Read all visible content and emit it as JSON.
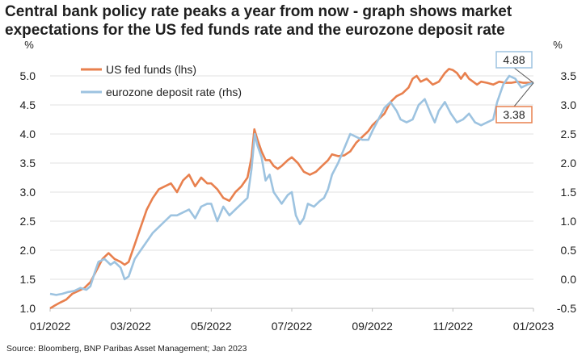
{
  "title_lines": [
    "Central bank policy rate peaks a year from now - graph shows market",
    "expectations for the US fed funds rate and the eurozone deposit rate"
  ],
  "source": "Source: Bloomberg, BNP Paribas Asset Management; Jan 2023",
  "chart_data": {
    "type": "line",
    "x_axis": {
      "min_index": 0,
      "max_index": 12,
      "ticks": [
        {
          "index": 0,
          "label": "01/2022"
        },
        {
          "index": 2,
          "label": "03/2022"
        },
        {
          "index": 4,
          "label": "05/2022"
        },
        {
          "index": 6,
          "label": "07/2022"
        },
        {
          "index": 8,
          "label": "09/2022"
        },
        {
          "index": 10,
          "label": "11/2022"
        },
        {
          "index": 12,
          "label": "01/2023"
        }
      ]
    },
    "y_left": {
      "unit": "%",
      "min": 1.0,
      "max": 5.0,
      "ticks": [
        "1.0",
        "1.5",
        "2.0",
        "2.5",
        "3.0",
        "3.5",
        "4.0",
        "4.5",
        "5.0"
      ]
    },
    "y_right": {
      "unit": "%",
      "min": -0.5,
      "max": 3.5,
      "ticks": [
        "-0.5",
        "0.0",
        "0.5",
        "1.0",
        "1.5",
        "2.0",
        "2.5",
        "3.0",
        "3.5"
      ]
    },
    "grid": "horizontal",
    "legend_position": "top-left",
    "series": [
      {
        "name": "US fed funds (lhs)",
        "axis": "left",
        "color": "#e8804e",
        "points": [
          [
            0.0,
            1.0
          ],
          [
            0.12,
            1.05
          ],
          [
            0.25,
            1.1
          ],
          [
            0.4,
            1.15
          ],
          [
            0.55,
            1.25
          ],
          [
            0.7,
            1.3
          ],
          [
            0.85,
            1.35
          ],
          [
            1.0,
            1.45
          ],
          [
            1.15,
            1.65
          ],
          [
            1.3,
            1.85
          ],
          [
            1.45,
            1.95
          ],
          [
            1.6,
            1.85
          ],
          [
            1.75,
            1.8
          ],
          [
            1.85,
            1.75
          ],
          [
            1.95,
            1.8
          ],
          [
            2.1,
            2.1
          ],
          [
            2.25,
            2.4
          ],
          [
            2.4,
            2.7
          ],
          [
            2.55,
            2.9
          ],
          [
            2.7,
            3.05
          ],
          [
            2.85,
            3.1
          ],
          [
            3.0,
            3.15
          ],
          [
            3.15,
            3.0
          ],
          [
            3.3,
            3.2
          ],
          [
            3.45,
            3.3
          ],
          [
            3.6,
            3.1
          ],
          [
            3.75,
            3.25
          ],
          [
            3.9,
            3.15
          ],
          [
            4.0,
            3.15
          ],
          [
            4.15,
            3.05
          ],
          [
            4.3,
            2.9
          ],
          [
            4.45,
            2.85
          ],
          [
            4.6,
            3.0
          ],
          [
            4.75,
            3.1
          ],
          [
            4.9,
            3.25
          ],
          [
            5.0,
            3.6
          ],
          [
            5.07,
            4.08
          ],
          [
            5.15,
            3.9
          ],
          [
            5.25,
            3.7
          ],
          [
            5.35,
            3.55
          ],
          [
            5.45,
            3.55
          ],
          [
            5.55,
            3.45
          ],
          [
            5.65,
            3.4
          ],
          [
            5.75,
            3.45
          ],
          [
            5.9,
            3.55
          ],
          [
            6.0,
            3.6
          ],
          [
            6.15,
            3.5
          ],
          [
            6.3,
            3.35
          ],
          [
            6.45,
            3.3
          ],
          [
            6.6,
            3.35
          ],
          [
            6.75,
            3.45
          ],
          [
            6.9,
            3.55
          ],
          [
            7.0,
            3.65
          ],
          [
            7.15,
            3.62
          ],
          [
            7.3,
            3.63
          ],
          [
            7.45,
            3.7
          ],
          [
            7.6,
            3.85
          ],
          [
            7.75,
            3.95
          ],
          [
            7.9,
            4.05
          ],
          [
            8.0,
            4.15
          ],
          [
            8.15,
            4.25
          ],
          [
            8.3,
            4.35
          ],
          [
            8.45,
            4.55
          ],
          [
            8.6,
            4.65
          ],
          [
            8.75,
            4.7
          ],
          [
            8.9,
            4.8
          ],
          [
            9.0,
            4.95
          ],
          [
            9.1,
            5.0
          ],
          [
            9.2,
            4.9
          ],
          [
            9.35,
            4.95
          ],
          [
            9.5,
            4.85
          ],
          [
            9.65,
            4.9
          ],
          [
            9.8,
            5.05
          ],
          [
            9.9,
            5.12
          ],
          [
            10.0,
            5.1
          ],
          [
            10.1,
            5.05
          ],
          [
            10.2,
            4.95
          ],
          [
            10.3,
            5.05
          ],
          [
            10.4,
            4.95
          ],
          [
            10.5,
            4.9
          ],
          [
            10.6,
            4.85
          ],
          [
            10.7,
            4.9
          ],
          [
            10.85,
            4.88
          ],
          [
            11.0,
            4.85
          ],
          [
            11.15,
            4.9
          ],
          [
            11.3,
            4.88
          ],
          [
            11.45,
            4.88
          ],
          [
            11.6,
            4.9
          ],
          [
            11.75,
            4.88
          ],
          [
            11.9,
            4.88
          ],
          [
            12.0,
            4.88
          ]
        ],
        "end_label": "4.88"
      },
      {
        "name": "eurozone deposit rate (rhs)",
        "axis": "right",
        "color": "#9dc3e0",
        "points": [
          [
            0.0,
            -0.25
          ],
          [
            0.15,
            -0.27
          ],
          [
            0.3,
            -0.25
          ],
          [
            0.45,
            -0.22
          ],
          [
            0.6,
            -0.2
          ],
          [
            0.75,
            -0.15
          ],
          [
            0.9,
            -0.18
          ],
          [
            1.0,
            -0.12
          ],
          [
            1.1,
            0.1
          ],
          [
            1.2,
            0.3
          ],
          [
            1.35,
            0.35
          ],
          [
            1.5,
            0.25
          ],
          [
            1.6,
            0.3
          ],
          [
            1.75,
            0.2
          ],
          [
            1.85,
            0.0
          ],
          [
            1.95,
            0.05
          ],
          [
            2.1,
            0.35
          ],
          [
            2.25,
            0.5
          ],
          [
            2.4,
            0.65
          ],
          [
            2.55,
            0.8
          ],
          [
            2.7,
            0.9
          ],
          [
            2.85,
            1.0
          ],
          [
            3.0,
            1.1
          ],
          [
            3.15,
            1.1
          ],
          [
            3.3,
            1.15
          ],
          [
            3.45,
            1.2
          ],
          [
            3.6,
            1.05
          ],
          [
            3.75,
            1.25
          ],
          [
            3.9,
            1.3
          ],
          [
            4.0,
            1.3
          ],
          [
            4.15,
            1.0
          ],
          [
            4.3,
            1.25
          ],
          [
            4.45,
            1.1
          ],
          [
            4.6,
            1.2
          ],
          [
            4.75,
            1.3
          ],
          [
            4.9,
            1.4
          ],
          [
            5.0,
            1.9
          ],
          [
            5.08,
            2.5
          ],
          [
            5.15,
            2.3
          ],
          [
            5.25,
            2.1
          ],
          [
            5.35,
            1.7
          ],
          [
            5.45,
            1.8
          ],
          [
            5.55,
            1.5
          ],
          [
            5.65,
            1.4
          ],
          [
            5.75,
            1.3
          ],
          [
            5.9,
            1.45
          ],
          [
            6.0,
            1.5
          ],
          [
            6.1,
            1.1
          ],
          [
            6.2,
            0.95
          ],
          [
            6.3,
            1.05
          ],
          [
            6.4,
            1.3
          ],
          [
            6.55,
            1.25
          ],
          [
            6.7,
            1.35
          ],
          [
            6.8,
            1.4
          ],
          [
            6.9,
            1.55
          ],
          [
            7.0,
            1.8
          ],
          [
            7.15,
            2.0
          ],
          [
            7.3,
            2.25
          ],
          [
            7.45,
            2.5
          ],
          [
            7.6,
            2.45
          ],
          [
            7.75,
            2.4
          ],
          [
            7.9,
            2.4
          ],
          [
            8.0,
            2.55
          ],
          [
            8.15,
            2.75
          ],
          [
            8.3,
            2.95
          ],
          [
            8.45,
            3.05
          ],
          [
            8.6,
            2.9
          ],
          [
            8.7,
            2.75
          ],
          [
            8.85,
            2.7
          ],
          [
            9.0,
            2.75
          ],
          [
            9.15,
            3.0
          ],
          [
            9.3,
            3.1
          ],
          [
            9.45,
            2.85
          ],
          [
            9.55,
            2.7
          ],
          [
            9.65,
            2.9
          ],
          [
            9.8,
            3.05
          ],
          [
            9.95,
            2.85
          ],
          [
            10.1,
            2.7
          ],
          [
            10.25,
            2.75
          ],
          [
            10.4,
            2.85
          ],
          [
            10.55,
            2.7
          ],
          [
            10.7,
            2.65
          ],
          [
            10.85,
            2.7
          ],
          [
            11.0,
            2.75
          ],
          [
            11.1,
            3.05
          ],
          [
            11.25,
            3.35
          ],
          [
            11.4,
            3.5
          ],
          [
            11.55,
            3.45
          ],
          [
            11.7,
            3.3
          ],
          [
            11.85,
            3.35
          ],
          [
            12.0,
            3.38
          ]
        ],
        "end_label": "3.38"
      }
    ]
  }
}
